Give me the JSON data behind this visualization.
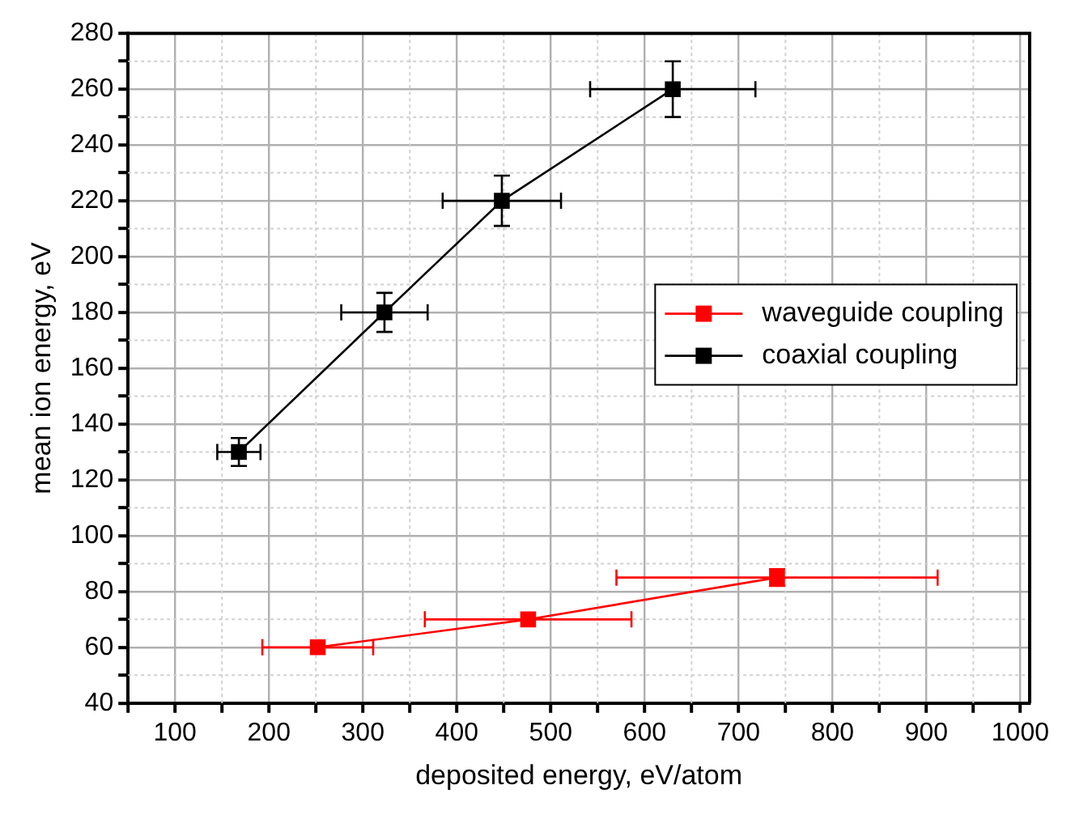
{
  "chart_data": {
    "type": "line",
    "xlabel": "deposited energy, eV/atom",
    "ylabel": "mean ion energy, eV",
    "xlim": [
      50,
      1010
    ],
    "ylim": [
      40,
      280
    ],
    "xticks": [
      {
        "value": 50,
        "label": null
      },
      100,
      {
        "value": 150,
        "label": null
      },
      200,
      {
        "value": 250,
        "label": null
      },
      300,
      {
        "value": 350,
        "label": null
      },
      400,
      {
        "value": 450,
        "label": null
      },
      500,
      {
        "value": 550,
        "label": null
      },
      600,
      {
        "value": 650,
        "label": null
      },
      700,
      {
        "value": 750,
        "label": null
      },
      800,
      {
        "value": 850,
        "label": null
      },
      900,
      {
        "value": 950,
        "label": null
      },
      1000
    ],
    "yticks": [
      40,
      {
        "value": 50,
        "label": null
      },
      60,
      {
        "value": 70,
        "label": null
      },
      80,
      {
        "value": 90,
        "label": null
      },
      100,
      {
        "value": 110,
        "label": null
      },
      120,
      {
        "value": 130,
        "label": null
      },
      140,
      {
        "value": 150,
        "label": null
      },
      160,
      {
        "value": 170,
        "label": null
      },
      180,
      {
        "value": 190,
        "label": null
      },
      200,
      {
        "value": 210,
        "label": null
      },
      220,
      {
        "value": 230,
        "label": null
      },
      240,
      {
        "value": 250,
        "label": null
      },
      260,
      {
        "value": 270,
        "label": null
      },
      280
    ],
    "grid": true,
    "legend": "right",
    "marker": "square",
    "line_style": "solid",
    "series": [
      {
        "name": "waveguide coupling",
        "color": "#ff0000",
        "x": [
          252,
          476,
          741
        ],
        "values": [
          60,
          70,
          85
        ],
        "errors": [
          null,
          null,
          3
        ],
        "xerrors": [
          59,
          110,
          171
        ]
      },
      {
        "name": "coaxial coupling",
        "color": "#000000",
        "x": [
          168,
          323,
          448,
          630
        ],
        "values": [
          130,
          180,
          220,
          260
        ],
        "errors": [
          5,
          7,
          9,
          10
        ],
        "xerrors": [
          23,
          46,
          63,
          88
        ]
      }
    ]
  }
}
